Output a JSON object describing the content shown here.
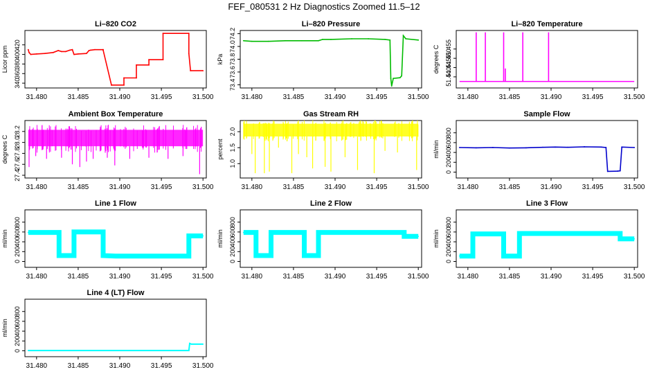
{
  "page": {
    "title": "FEF_080531  2 Hz Diagnostics Zoomed 11.5–12"
  },
  "colors": {
    "co2": "#ff0000",
    "pressure": "#00bb00",
    "temperature": "#ff00ff",
    "ambient": "#ff00ff",
    "rh": "#ffff00",
    "sample_flow": "#0000cc",
    "line_flow": "#00ffff",
    "axis": "#000000"
  },
  "chart_data": [
    {
      "type": "line",
      "title": "Li–820 CO2",
      "ylabel": "Licor ppm",
      "xlabel": "",
      "color": "#ff0000",
      "xlim": [
        31.4786,
        31.5004
      ],
      "ylim": [
        330,
        450
      ],
      "x_ticks": [
        "31.480",
        "31.485",
        "31.490",
        "31.495",
        "31.500"
      ],
      "y_ticks": [
        "340",
        "360",
        "380",
        "400",
        "420"
      ],
      "x": [
        31.479,
        31.4791,
        31.4793,
        31.48,
        31.481,
        31.482,
        31.4826,
        31.483,
        31.4835,
        31.484,
        31.4843,
        31.4845,
        31.485,
        31.486,
        31.4863,
        31.4865,
        31.487,
        31.488,
        31.488,
        31.489,
        31.489,
        31.4905,
        31.4905,
        31.492,
        31.492,
        31.4935,
        31.4935,
        31.4952,
        31.4952,
        31.4983,
        31.4983,
        31.4985,
        31.5
      ],
      "values": [
        410,
        404,
        400,
        401,
        402,
        404,
        408,
        406,
        406,
        409,
        410,
        400,
        401,
        402,
        408,
        409,
        410,
        410,
        409,
        336,
        336,
        336,
        351,
        351,
        378,
        378,
        389,
        389,
        444,
        444,
        402,
        366,
        366
      ]
    },
    {
      "type": "line",
      "title": "Li–820 Pressure",
      "ylabel": "kPa",
      "xlabel": "",
      "color": "#00bb00",
      "xlim": [
        31.4786,
        31.5004
      ],
      "ylim": [
        73.35,
        74.25
      ],
      "x_ticks": [
        "31.480",
        "31.485",
        "31.490",
        "31.495",
        "31.500"
      ],
      "y_ticks": [
        "73.4",
        "73.6",
        "73.8",
        "74.0",
        "74.2"
      ],
      "x": [
        31.479,
        31.48,
        31.482,
        31.484,
        31.486,
        31.488,
        31.4885,
        31.4895,
        31.492,
        31.494,
        31.496,
        31.4966,
        31.4967,
        31.4968,
        31.497,
        31.4978,
        31.498,
        31.4982,
        31.4985,
        31.5
      ],
      "values": [
        74.09,
        74.08,
        74.08,
        74.09,
        74.09,
        74.09,
        74.11,
        74.11,
        74.12,
        74.12,
        74.11,
        74.1,
        73.5,
        73.38,
        73.5,
        73.51,
        73.54,
        74.17,
        74.12,
        74.1
      ]
    },
    {
      "type": "line",
      "title": "Li–820 Temperature",
      "ylabel": "degrees C",
      "xlabel": "",
      "color": "#ff00ff",
      "xlim": [
        31.4786,
        31.5004
      ],
      "ylim": [
        51.434,
        51.465
      ],
      "x_ticks": [
        "31.480",
        "31.485",
        "31.490",
        "31.495",
        "31.500"
      ],
      "y_ticks": [
        "51.440",
        "51.445",
        "51.450",
        "51.455"
      ],
      "baseline": 51.4375,
      "spikes": [
        {
          "x": 31.481,
          "value": 51.464
        },
        {
          "x": 31.4821,
          "value": 51.464
        },
        {
          "x": 31.4843,
          "value": 51.464
        },
        {
          "x": 31.4845,
          "value": 51.4445
        },
        {
          "x": 31.4866,
          "value": 51.464
        },
        {
          "x": 31.4897,
          "value": 51.464
        }
      ]
    },
    {
      "type": "line",
      "title": "Ambient Box Temperature",
      "ylabel": "degrees C",
      "xlabel": "",
      "color": "#ff00ff",
      "xlim": [
        31.4786,
        31.5004
      ],
      "ylim": [
        27.35,
        28.4
      ],
      "x_ticks": [
        "31.480",
        "31.485",
        "31.490",
        "31.495",
        "31.500"
      ],
      "y_ticks": [
        "27.4",
        "27.6",
        "27.8",
        "28.0",
        "28.2"
      ],
      "band": [
        27.93,
        28.23
      ],
      "dips": [
        {
          "x": 31.4791,
          "value": 27.55
        },
        {
          "x": 31.4799,
          "value": 27.75
        },
        {
          "x": 31.4812,
          "value": 27.7
        },
        {
          "x": 31.483,
          "value": 27.72
        },
        {
          "x": 31.4843,
          "value": 27.6
        },
        {
          "x": 31.4852,
          "value": 27.55
        },
        {
          "x": 31.486,
          "value": 27.65
        },
        {
          "x": 31.4868,
          "value": 27.7
        },
        {
          "x": 31.4885,
          "value": 27.72
        },
        {
          "x": 31.4894,
          "value": 27.58
        },
        {
          "x": 31.4912,
          "value": 27.7
        },
        {
          "x": 31.4935,
          "value": 27.72
        },
        {
          "x": 31.4958,
          "value": 27.7
        },
        {
          "x": 31.4976,
          "value": 27.75
        },
        {
          "x": 31.4996,
          "value": 27.42
        }
      ]
    },
    {
      "type": "line",
      "title": "Gas Stream RH",
      "ylabel": "percent",
      "xlabel": "",
      "color": "#ffff00",
      "xlim": [
        31.4786,
        31.5004
      ],
      "ylim": [
        0.55,
        2.35
      ],
      "x_ticks": [
        "31.480",
        "31.485",
        "31.490",
        "31.495",
        "31.500"
      ],
      "y_ticks": [
        "1.0",
        "1.5",
        "2.0"
      ],
      "band": [
        1.85,
        2.25
      ],
      "dips": [
        {
          "x": 31.48,
          "value": 1.3
        },
        {
          "x": 31.4804,
          "value": 0.7
        },
        {
          "x": 31.4815,
          "value": 0.7
        },
        {
          "x": 31.4821,
          "value": 0.75
        },
        {
          "x": 31.4832,
          "value": 1.5
        },
        {
          "x": 31.4848,
          "value": 0.7
        },
        {
          "x": 31.4856,
          "value": 1.3
        },
        {
          "x": 31.4866,
          "value": 1.2
        },
        {
          "x": 31.4873,
          "value": 0.85
        },
        {
          "x": 31.4888,
          "value": 0.9
        },
        {
          "x": 31.4895,
          "value": 0.75
        },
        {
          "x": 31.4912,
          "value": 1.2
        },
        {
          "x": 31.4927,
          "value": 0.8
        },
        {
          "x": 31.4947,
          "value": 0.7
        },
        {
          "x": 31.496,
          "value": 1.4
        },
        {
          "x": 31.4975,
          "value": 1.35
        },
        {
          "x": 31.4998,
          "value": 0.8
        }
      ]
    },
    {
      "type": "line",
      "title": "Sample Flow",
      "ylabel": "ml/min",
      "xlabel": "",
      "color": "#0000cc",
      "xlim": [
        31.4786,
        31.5004
      ],
      "ylim": [
        -120,
        1050
      ],
      "x_ticks": [
        "31.480",
        "31.485",
        "31.490",
        "31.495",
        "31.500"
      ],
      "y_ticks": [
        "0",
        "200",
        "400",
        "600",
        "800"
      ],
      "x": [
        31.479,
        31.481,
        31.483,
        31.485,
        31.487,
        31.489,
        31.4905,
        31.492,
        31.494,
        31.496,
        31.4966,
        31.4968,
        31.498,
        31.4983,
        31.4985,
        31.5
      ],
      "values": [
        500,
        495,
        500,
        490,
        495,
        505,
        510,
        505,
        515,
        510,
        500,
        15,
        20,
        25,
        510,
        500
      ]
    },
    {
      "type": "line",
      "title": "Line 1 Flow",
      "ylabel": "ml/min",
      "xlabel": "",
      "color": "#00ffff",
      "xlim": [
        31.4786,
        31.5004
      ],
      "ylim": [
        -120,
        1050
      ],
      "x_ticks": [
        "31.480",
        "31.485",
        "31.490",
        "31.495",
        "31.500"
      ],
      "y_ticks": [
        "0",
        "200",
        "400",
        "600",
        "800"
      ],
      "x": [
        31.479,
        31.4827,
        31.4827,
        31.4845,
        31.4845,
        31.488,
        31.488,
        31.4895,
        31.4983,
        31.4983,
        31.5
      ],
      "values": [
        590,
        590,
        120,
        120,
        600,
        600,
        120,
        110,
        110,
        520,
        520
      ],
      "thickness": 7
    },
    {
      "type": "line",
      "title": "Line 2 Flow",
      "ylabel": "ml/min",
      "xlabel": "",
      "color": "#00ffff",
      "xlim": [
        31.4786,
        31.5004
      ],
      "ylim": [
        -120,
        1050
      ],
      "x_ticks": [
        "31.480",
        "31.485",
        "31.490",
        "31.495",
        "31.500"
      ],
      "y_ticks": [
        "0",
        "200",
        "400",
        "600",
        "800"
      ],
      "x": [
        31.479,
        31.4805,
        31.4805,
        31.4823,
        31.4823,
        31.4863,
        31.4863,
        31.488,
        31.488,
        31.4983,
        31.4983,
        31.5
      ],
      "values": [
        590,
        590,
        120,
        120,
        590,
        590,
        120,
        120,
        590,
        590,
        510,
        510
      ],
      "thickness": 7
    },
    {
      "type": "line",
      "title": "Line 3 Flow",
      "ylabel": "ml/min",
      "xlabel": "",
      "color": "#00ffff",
      "xlim": [
        31.4786,
        31.5004
      ],
      "ylim": [
        -120,
        1050
      ],
      "x_ticks": [
        "31.480",
        "31.485",
        "31.490",
        "31.495",
        "31.500"
      ],
      "y_ticks": [
        "0",
        "200",
        "400",
        "600",
        "800"
      ],
      "x": [
        31.479,
        31.4806,
        31.4806,
        31.4843,
        31.4843,
        31.4862,
        31.4862,
        31.4983,
        31.4983,
        31.5
      ],
      "values": [
        110,
        110,
        560,
        560,
        110,
        110,
        570,
        570,
        460,
        460
      ],
      "thickness": 7
    },
    {
      "type": "line",
      "title": "Line 4 (LT) Flow",
      "ylabel": "ml/min",
      "xlabel": "",
      "color": "#00ffff",
      "xlim": [
        31.4786,
        31.5004
      ],
      "ylim": [
        -120,
        1050
      ],
      "x_ticks": [
        "31.480",
        "31.485",
        "31.490",
        "31.495",
        "31.500"
      ],
      "y_ticks": [
        "0",
        "200",
        "400",
        "600",
        "800"
      ],
      "x": [
        31.479,
        31.4983,
        31.4984,
        31.4986,
        31.5
      ],
      "values": [
        5,
        5,
        150,
        135,
        135
      ],
      "thickness": 2
    }
  ]
}
